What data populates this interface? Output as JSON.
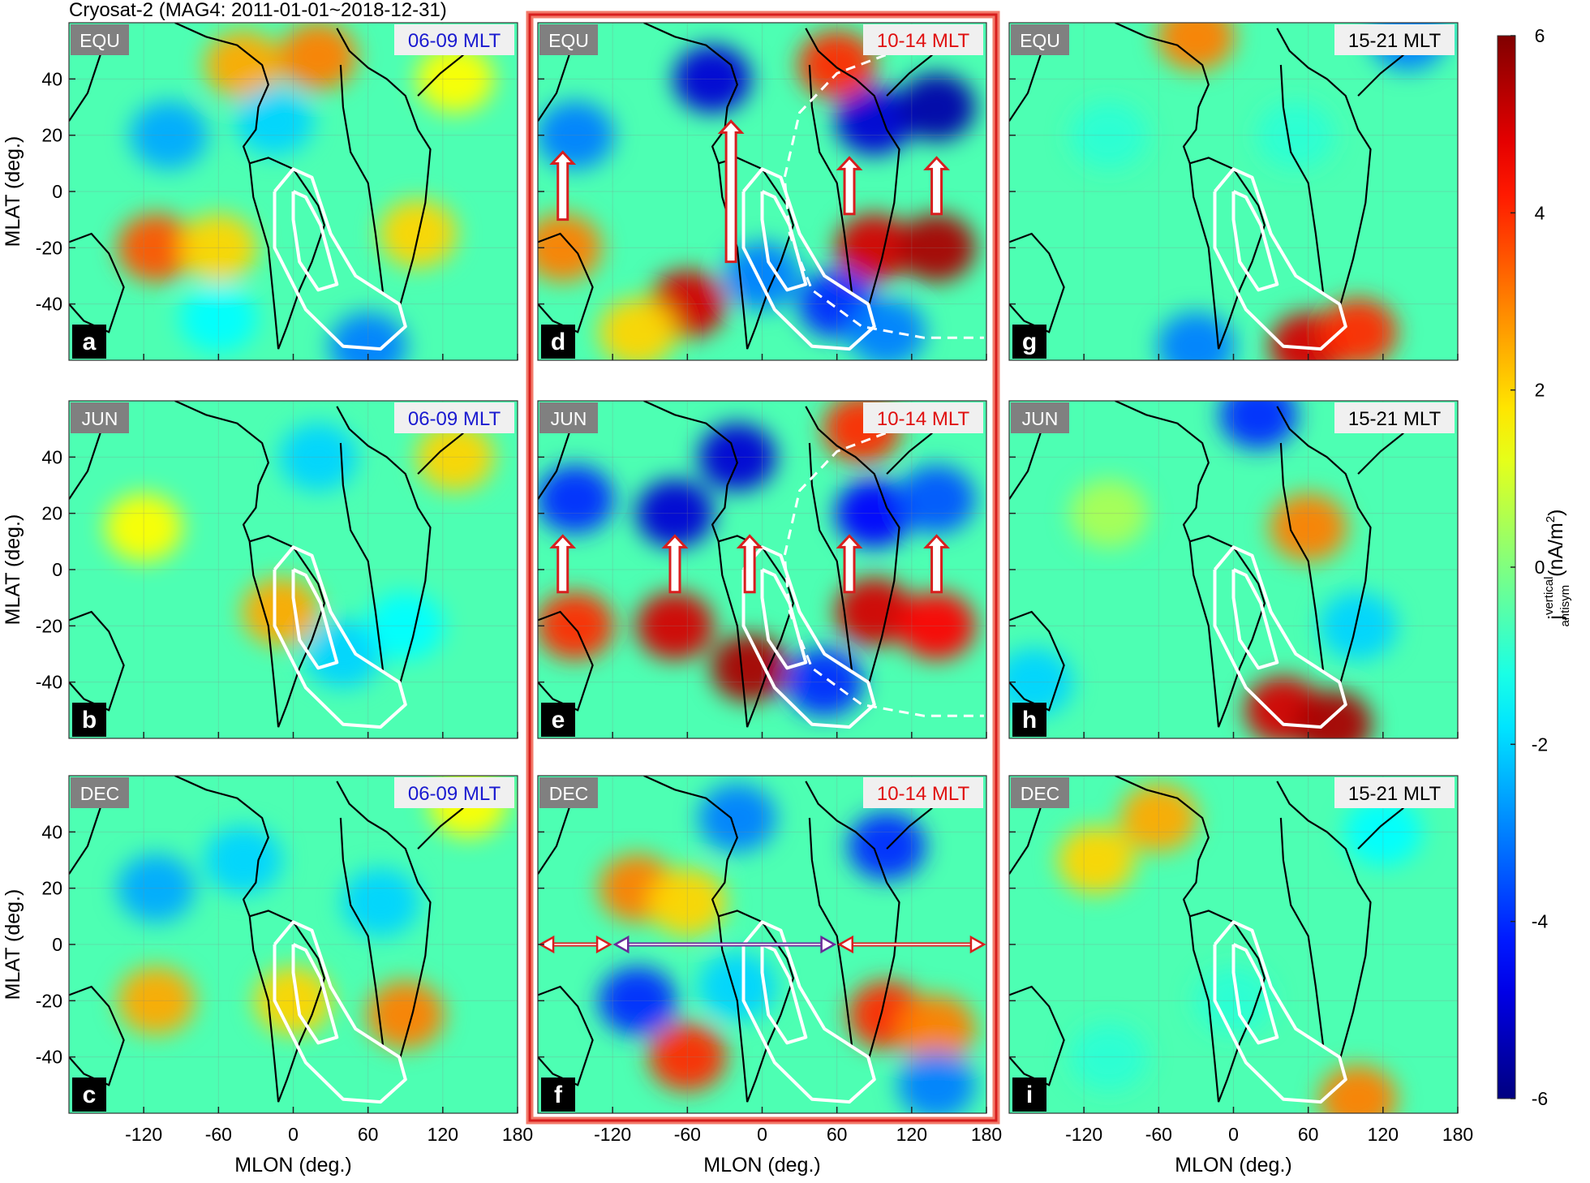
{
  "chart_data": {
    "type": "heatmap",
    "title": "Cryosat-2 (MAG4: 2011-01-01~2018-12-31)",
    "xlabel": "MLON (deg.)",
    "ylabel": "MLAT (deg.)",
    "xlim": [
      -180,
      180
    ],
    "ylim": [
      -60,
      60
    ],
    "xticks": [
      -120,
      -60,
      0,
      60,
      120,
      180
    ],
    "yticks": [
      -40,
      -20,
      0,
      20,
      40
    ],
    "grid": true,
    "colormap": "jet",
    "clim": [
      -6,
      6
    ],
    "cticks": [
      -6,
      -4,
      -2,
      0,
      2,
      4,
      6
    ],
    "colorbar_label": [
      "j",
      "vertical",
      "antisym",
      "(nA/m",
      "2",
      ")"
    ],
    "panels": [
      {
        "season": "EQU",
        "mlt": "06-09 MLT",
        "mlt_color": "#1a1ad0",
        "letter": "a",
        "x": [
          -40,
          20,
          -100,
          -15,
          -110,
          -60,
          100,
          130,
          -60,
          60
        ],
        "y": [
          45,
          48,
          20,
          25,
          -20,
          -20,
          -15,
          40,
          -45,
          -55
        ],
        "values": [
          2.5,
          3,
          -2.5,
          -2,
          3.5,
          2,
          2,
          1.5,
          -1.5,
          -3
        ]
      },
      {
        "season": "JUN",
        "mlt": "06-09 MLT",
        "mlt_color": "#1a1ad0",
        "letter": "b",
        "x": [
          -120,
          -10,
          40,
          20,
          130,
          90
        ],
        "y": [
          15,
          -15,
          -30,
          40,
          40,
          -20
        ],
        "values": [
          1.5,
          2.5,
          -2,
          -2,
          2,
          -1.5
        ]
      },
      {
        "season": "DEC",
        "mlt": "06-09 MLT",
        "mlt_color": "#1a1ad0",
        "letter": "c",
        "x": [
          -110,
          -40,
          -110,
          90,
          70,
          140,
          0
        ],
        "y": [
          20,
          30,
          -20,
          -25,
          15,
          50,
          -20
        ],
        "values": [
          -2.5,
          -2,
          2.5,
          3,
          -2,
          1.5,
          2
        ]
      },
      {
        "season": "EQU",
        "mlt": "10-14 MLT",
        "mlt_color": "#e01010",
        "letter": "d",
        "x": [
          -150,
          -40,
          90,
          140,
          -60,
          90,
          140,
          -160,
          60,
          100,
          60,
          -100,
          0
        ],
        "y": [
          20,
          40,
          25,
          30,
          -40,
          -20,
          -20,
          -20,
          -40,
          -50,
          45,
          -50,
          -30
        ],
        "values": [
          -3,
          -5,
          -5,
          -5.5,
          5,
          5,
          5.5,
          3,
          -4,
          -3,
          4,
          2,
          -3
        ]
      },
      {
        "season": "JUN",
        "mlt": "10-14 MLT",
        "mlt_color": "#e01010",
        "letter": "e",
        "x": [
          -150,
          -70,
          -20,
          90,
          140,
          -150,
          -70,
          -10,
          90,
          140,
          50,
          80
        ],
        "y": [
          25,
          20,
          40,
          20,
          25,
          -20,
          -20,
          -35,
          -15,
          -20,
          -40,
          50
        ],
        "values": [
          -4,
          -5,
          -5,
          -4.5,
          -3.5,
          4,
          5,
          5.5,
          5,
          4.5,
          -4,
          4
        ]
      },
      {
        "season": "DEC",
        "mlt": "10-14 MLT",
        "mlt_color": "#e01010",
        "letter": "f",
        "x": [
          -100,
          -60,
          -20,
          100,
          -100,
          -60,
          100,
          140,
          140,
          -20
        ],
        "y": [
          20,
          15,
          45,
          35,
          -20,
          -40,
          -25,
          -30,
          -50,
          -15
        ],
        "values": [
          3,
          2,
          -3,
          -4,
          -4,
          4,
          4,
          3,
          -3,
          -2
        ]
      },
      {
        "season": "EQU",
        "mlt": "15-21 MLT",
        "mlt_color": "#000000",
        "letter": "g",
        "x": [
          -30,
          140,
          -100,
          60,
          100,
          -30,
          50
        ],
        "y": [
          55,
          55,
          20,
          -55,
          -50,
          -55,
          20
        ],
        "values": [
          3,
          -3,
          -1,
          5,
          4,
          -3,
          -1
        ]
      },
      {
        "season": "JUN",
        "mlt": "15-21 MLT",
        "mlt_color": "#000000",
        "letter": "h",
        "x": [
          60,
          40,
          80,
          20,
          -160,
          100,
          -100
        ],
        "y": [
          15,
          -50,
          -55,
          55,
          -40,
          -20,
          20
        ],
        "values": [
          3,
          5,
          5.5,
          -4,
          -2,
          -2,
          0.5
        ]
      },
      {
        "season": "DEC",
        "mlt": "15-21 MLT",
        "mlt_color": "#000000",
        "letter": "i",
        "x": [
          -60,
          -110,
          120,
          100,
          -100,
          0
        ],
        "y": [
          45,
          30,
          40,
          -55,
          -40,
          -20
        ],
        "values": [
          2.5,
          2,
          -1.5,
          3,
          -1,
          -1
        ]
      }
    ]
  }
}
